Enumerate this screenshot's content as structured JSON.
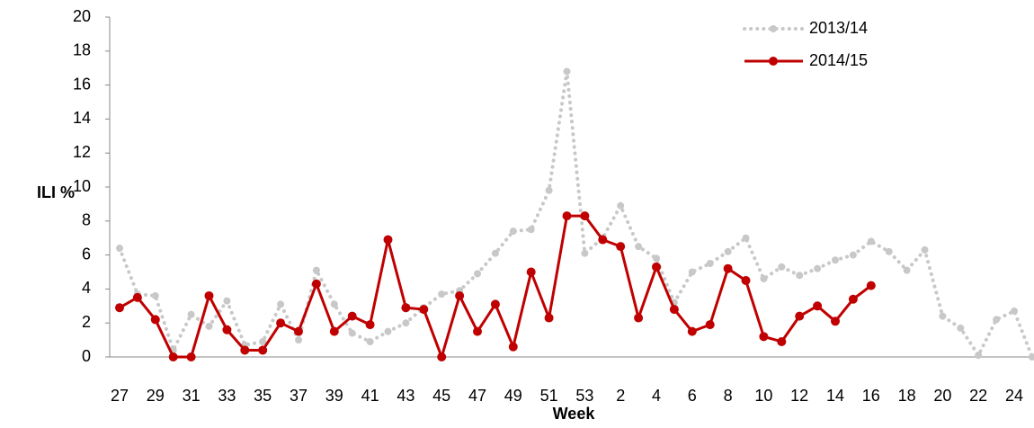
{
  "chart_data": {
    "type": "line",
    "y_label": "ILI %",
    "x_label": "Week",
    "categories": [
      "27",
      null,
      "29",
      null,
      "31",
      null,
      "33",
      null,
      "35",
      null,
      "37",
      null,
      "39",
      null,
      "41",
      null,
      "43",
      null,
      "45",
      null,
      "47",
      null,
      "49",
      null,
      "51",
      null,
      "53",
      null,
      "2",
      null,
      "4",
      null,
      "6",
      null,
      "8",
      null,
      "10",
      null,
      "12",
      null,
      "14",
      null,
      "16",
      null,
      "18",
      null,
      "20",
      null,
      "22",
      null,
      "24",
      null
    ],
    "series": [
      {
        "name": "2013/14",
        "color": "#c8c8c8",
        "style": "dotted",
        "values": [
          6.4,
          3.7,
          3.6,
          0.4,
          2.5,
          1.8,
          3.3,
          0.7,
          0.9,
          3.1,
          1.0,
          5.1,
          3.1,
          1.4,
          0.9,
          1.5,
          2.0,
          2.9,
          3.7,
          3.9,
          4.9,
          6.1,
          7.4,
          7.5,
          9.8,
          16.8,
          6.1,
          7.0,
          8.9,
          6.5,
          5.8,
          3.2,
          5.0,
          5.5,
          6.2,
          7.0,
          4.6,
          5.3,
          4.8,
          5.2,
          5.7,
          6.0,
          6.8,
          6.2,
          5.1,
          6.3,
          2.4,
          1.7,
          0.1,
          2.2,
          2.7,
          0.0
        ]
      },
      {
        "name": "2014/15",
        "color": "#c00000",
        "style": "solid",
        "values": [
          2.9,
          3.5,
          2.2,
          0.0,
          0.0,
          3.6,
          1.6,
          0.4,
          0.4,
          2.0,
          1.5,
          4.3,
          1.5,
          2.4,
          1.9,
          6.9,
          2.9,
          2.8,
          0.0,
          3.6,
          1.5,
          3.1,
          0.6,
          5.0,
          2.3,
          8.3,
          8.3,
          6.9,
          6.5,
          2.3,
          5.3,
          2.8,
          1.5,
          1.9,
          5.2,
          4.5,
          1.2,
          0.9,
          2.4,
          3.0,
          2.1,
          3.4,
          4.2,
          null,
          null,
          null,
          null,
          null,
          null,
          null,
          null,
          null
        ]
      }
    ],
    "ylim": [
      0,
      20
    ],
    "yticks": [
      0,
      2,
      4,
      6,
      8,
      10,
      12,
      14,
      16,
      18,
      20
    ],
    "grid": false,
    "legend": "upper right"
  }
}
